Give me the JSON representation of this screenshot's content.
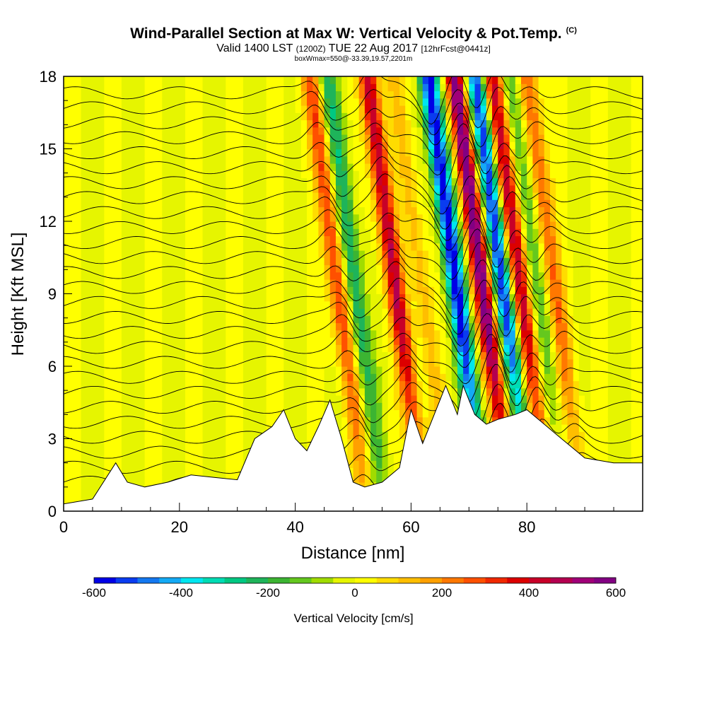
{
  "header": {
    "title": "Wind-Parallel Section at Max W: Vertical Velocity & Pot.Temp.",
    "copyright": "(C)",
    "valid_prefix": "Valid 1400 LST",
    "valid_utc": "(1200Z)",
    "valid_date": "TUE 22 Aug 2017",
    "forecast_info": "[12hrFcst@0441z]",
    "box_info": "boxWmax=550@-33.39,19.57,2201m"
  },
  "chart_data": {
    "type": "heatmap",
    "title": "Wind-Parallel Section at Max W: Vertical Velocity & Pot.Temp.",
    "xlabel": "Distance [nm]",
    "ylabel": "Height [Kft MSL]",
    "xlim": [
      0,
      100
    ],
    "ylim": [
      0,
      18
    ],
    "xticks": [
      0,
      20,
      40,
      60,
      80
    ],
    "yticks": [
      0,
      3,
      6,
      9,
      12,
      15,
      18
    ],
    "colorbar": {
      "label": "Vertical Velocity [cm/s]",
      "range": [
        -600,
        600
      ],
      "ticks": [
        -600,
        -400,
        -200,
        0,
        200,
        400,
        600
      ],
      "colors": [
        "#0000e6",
        "#0a3cf0",
        "#1478f0",
        "#14aaf5",
        "#00e6f0",
        "#00dcb4",
        "#00c882",
        "#1eb45a",
        "#3cb432",
        "#64c81e",
        "#a0dc00",
        "#e6f500",
        "#ffff00",
        "#ffdc00",
        "#ffbe00",
        "#ffa000",
        "#ff7800",
        "#ff5000",
        "#f02800",
        "#dc0000",
        "#c80028",
        "#b40050",
        "#a00078",
        "#820082"
      ]
    },
    "updraft_cores": [
      {
        "x": 47.5,
        "w": 300
      },
      {
        "x": 57.5,
        "w": 450
      },
      {
        "x": 62,
        "w": 120
      },
      {
        "x": 72.5,
        "w": 600
      },
      {
        "x": 79,
        "w": 450
      },
      {
        "x": 85,
        "w": 250
      }
    ],
    "downdraft_cores": [
      {
        "x": 50.5,
        "w": -250
      },
      {
        "x": 68,
        "w": -600
      },
      {
        "x": 76,
        "w": -550
      },
      {
        "x": 82,
        "w": -150
      }
    ],
    "terrain_kft": [
      [
        0,
        0.3
      ],
      [
        5,
        0.5
      ],
      [
        9,
        2
      ],
      [
        11,
        1.2
      ],
      [
        14,
        1
      ],
      [
        18,
        1.2
      ],
      [
        22,
        1.5
      ],
      [
        26,
        1.4
      ],
      [
        30,
        1.3
      ],
      [
        33,
        3
      ],
      [
        36,
        3.5
      ],
      [
        38,
        4.2
      ],
      [
        40,
        3
      ],
      [
        42,
        2.5
      ],
      [
        44,
        3.5
      ],
      [
        46,
        4.6
      ],
      [
        48,
        3
      ],
      [
        50,
        1.2
      ],
      [
        52,
        1
      ],
      [
        55,
        1.2
      ],
      [
        58,
        1.8
      ],
      [
        60,
        4.2
      ],
      [
        62,
        2.8
      ],
      [
        64,
        4
      ],
      [
        66,
        5.2
      ],
      [
        68,
        4
      ],
      [
        69,
        5.2
      ],
      [
        71,
        4
      ],
      [
        73,
        3.6
      ],
      [
        75,
        3.8
      ],
      [
        78,
        4
      ],
      [
        80,
        4.2
      ],
      [
        82,
        3.8
      ],
      [
        85,
        3.2
      ],
      [
        90,
        2.2
      ],
      [
        95,
        2
      ],
      [
        100,
        2
      ]
    ],
    "isentrope_levels_K": [
      300,
      302,
      304,
      306,
      308,
      310,
      312,
      314,
      316,
      318,
      320,
      322,
      324,
      326,
      328,
      330,
      332,
      334,
      336,
      338,
      340,
      342,
      344,
      346,
      348,
      350,
      352
    ]
  }
}
